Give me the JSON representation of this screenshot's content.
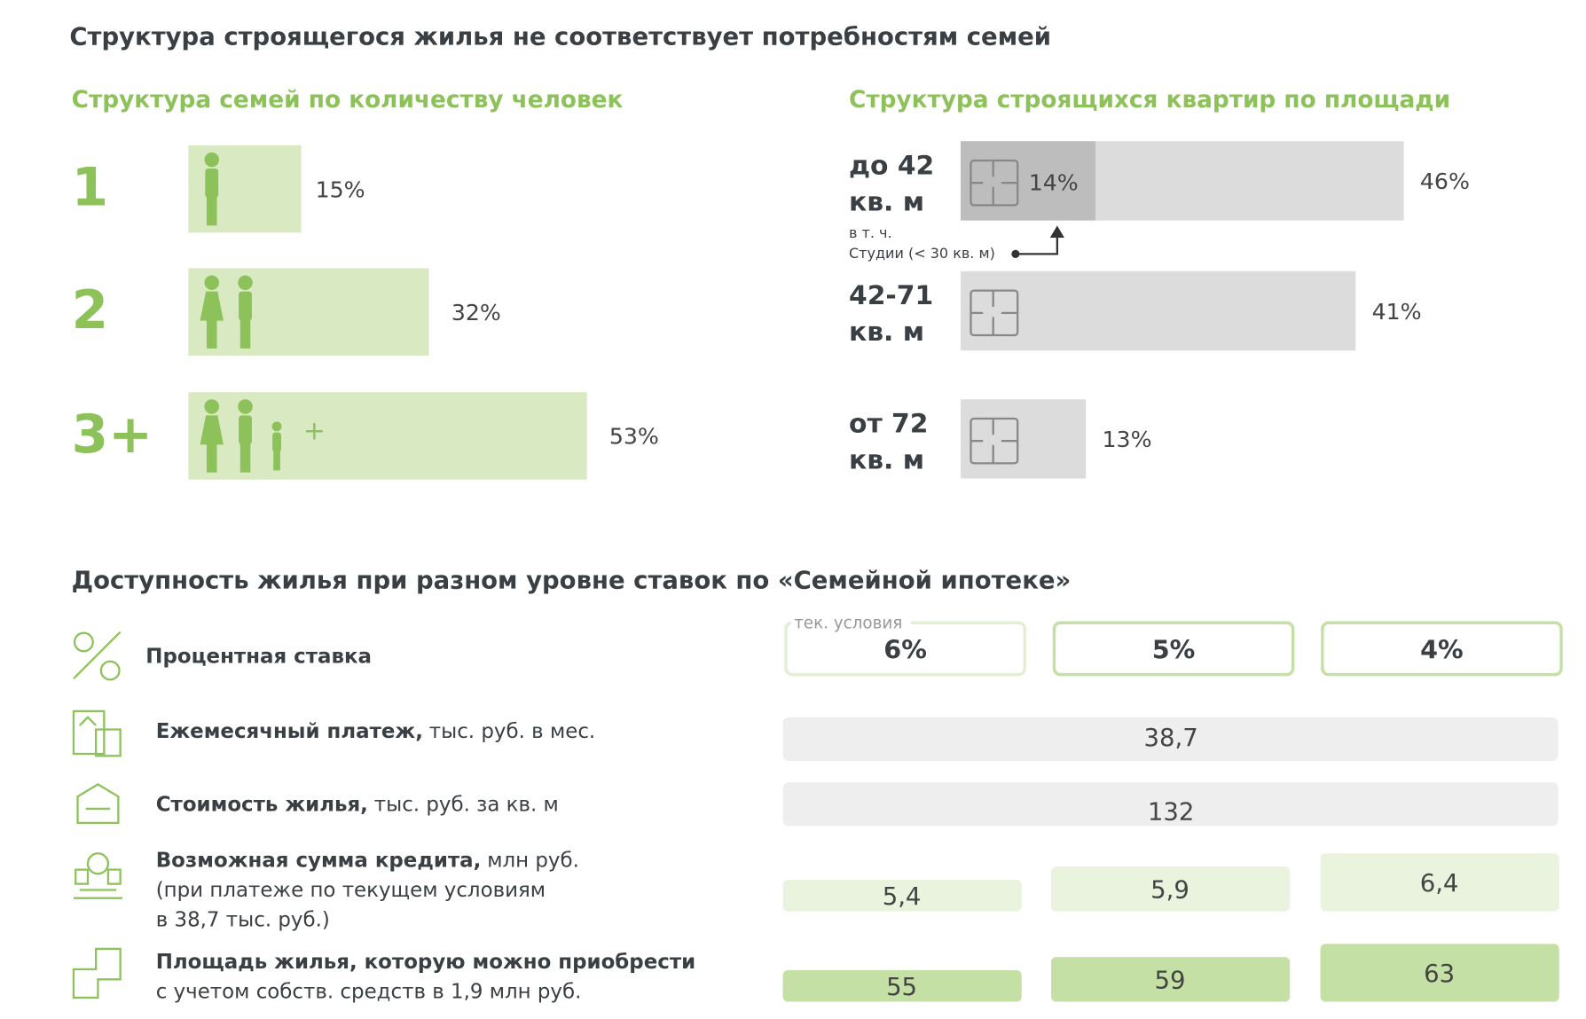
{
  "title": "Структура строящегося жилья не соответствует потребностям семей",
  "families": {
    "title": "Структура семей по количеству человек",
    "categories": [
      "1",
      "2",
      "3+"
    ],
    "values": [
      15,
      32,
      53
    ],
    "value_labels": [
      "15%",
      "32%",
      "53%"
    ],
    "plus_sign": "+",
    "color": "#d9eac3",
    "icon_color": "#8dc25a"
  },
  "apartments": {
    "title": "Структура строящихся квартир по площади",
    "categories": [
      [
        "до 42",
        "кв. м"
      ],
      [
        "42-71",
        "кв. м"
      ],
      [
        "от 72",
        "кв. м"
      ]
    ],
    "values": [
      46,
      41,
      13
    ],
    "value_labels": [
      "46%",
      "41%",
      "13%"
    ],
    "color": "#dcdcdc",
    "studio": {
      "note": [
        "в т. ч.",
        "Студии (< 30 кв. м)"
      ],
      "value": 14,
      "value_label": "14%",
      "color": "#bdbdbd"
    }
  },
  "mortgage": {
    "title": "Доступность жилья при разном уровне ставок по «Семейной ипотеке»",
    "rate_row": {
      "label": "Процентная ставка",
      "current_note": "тек. условия",
      "rates": [
        6,
        5,
        4
      ],
      "rate_labels": [
        "6%",
        "5%",
        "4%"
      ]
    },
    "rows": [
      {
        "bold": "Ежемесячный платеж,",
        "normal": "тыс. руб. в мес.",
        "value": 38.7,
        "value_label": "38,7"
      },
      {
        "bold": "Стоимость жилья,",
        "normal": "тыс. руб. за кв. м",
        "value": 132,
        "value_label": "132"
      }
    ],
    "per_rate_rows": [
      {
        "bold": "Возможная сумма кредита,",
        "normal": "млн руб.",
        "extra_lines": [
          "(при платеже по текущем условиям",
          "в 38,7 тыс. руб.)"
        ],
        "values": [
          5.4,
          5.9,
          6.4
        ],
        "value_labels": [
          "5,4",
          "5,9",
          "6,4"
        ],
        "color": "#e9f3dd"
      },
      {
        "bold": "Площадь жилья, которую можно приобрести",
        "extra_lines": [
          "с учетом собств. средств в 1,9 млн руб."
        ],
        "values": [
          55,
          59,
          63
        ],
        "value_labels": [
          "55",
          "59",
          "63"
        ],
        "color": "#c5e0a5"
      }
    ]
  }
}
